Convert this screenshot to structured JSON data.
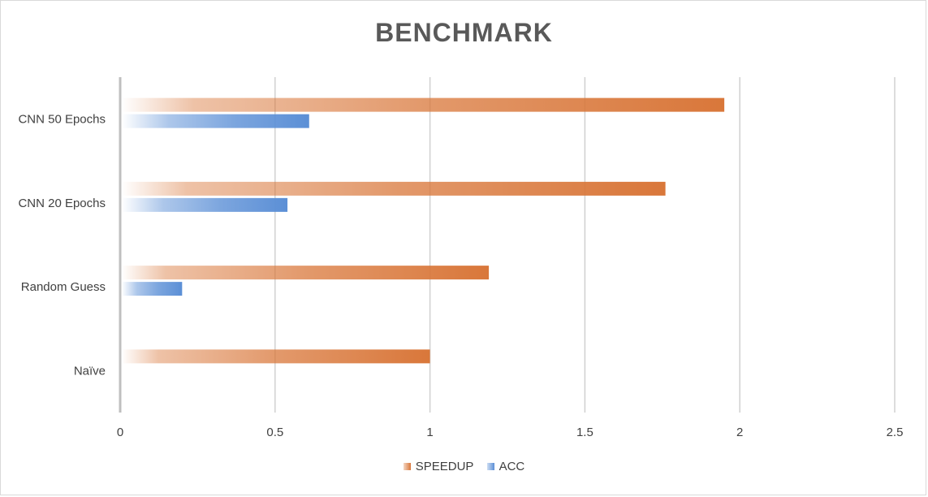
{
  "chart_data": {
    "type": "bar",
    "orientation": "horizontal",
    "title": "BENCHMARK",
    "categories": [
      "Naïve",
      "Random Guess",
      "CNN 20 Epochs",
      "CNN 50 Epochs"
    ],
    "series": [
      {
        "name": "SPEEDUP",
        "color": "#d9773a",
        "values": [
          1.0,
          1.19,
          1.76,
          1.95
        ]
      },
      {
        "name": "ACC",
        "color": "#5b8fd6",
        "values": [
          null,
          0.2,
          0.54,
          0.61
        ]
      }
    ],
    "xlim": [
      0,
      2.5
    ],
    "xticks": [
      "0",
      "0.5",
      "1",
      "1.5",
      "2",
      "2.5"
    ],
    "xtick_values": [
      0,
      0.5,
      1,
      1.5,
      2,
      2.5
    ],
    "grid": "vertical",
    "legend": "bottom"
  }
}
